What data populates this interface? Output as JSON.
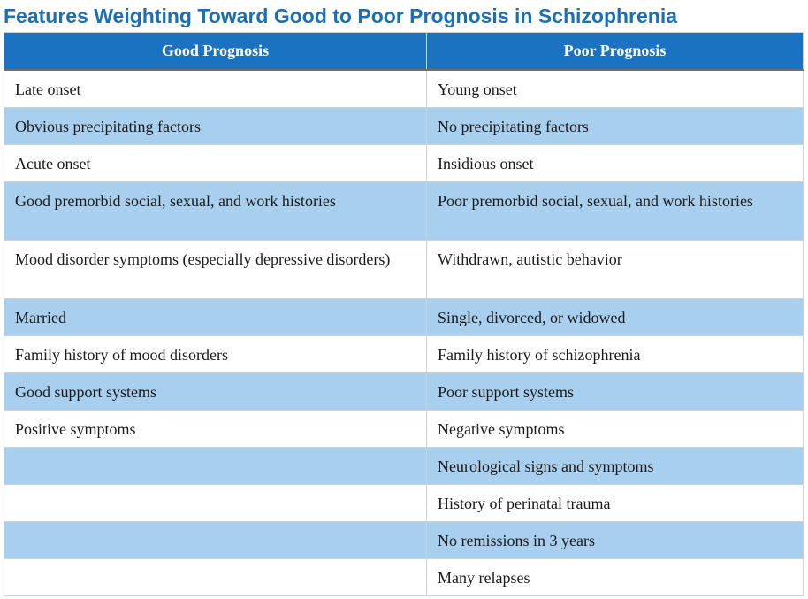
{
  "title": "Features Weighting Toward Good to Poor Prognosis in Schizophrenia",
  "table": {
    "headers": [
      "Good Prognosis",
      "Poor Prognosis"
    ],
    "rows": [
      {
        "good": "Late onset",
        "poor": "Young onset"
      },
      {
        "good": "Obvious precipitating factors",
        "poor": "No precipitating factors"
      },
      {
        "good": "Acute onset",
        "poor": "Insidious onset"
      },
      {
        "good": "Good premorbid social, sexual, and work histories",
        "poor": "Poor premorbid social, sexual, and work histories"
      },
      {
        "good": "Mood disorder symptoms (especially depressive disorders)",
        "poor": "Withdrawn, autistic behavior"
      },
      {
        "good": "Married",
        "poor": "Single, divorced, or widowed"
      },
      {
        "good": "Family history of mood disorders",
        "poor": "Family history of schizophrenia"
      },
      {
        "good": "Good support systems",
        "poor": "Poor support systems"
      },
      {
        "good": "Positive symptoms",
        "poor": "Negative symptoms"
      },
      {
        "good": "",
        "poor": "Neurological signs and symptoms"
      },
      {
        "good": "",
        "poor": "History of perinatal trauma"
      },
      {
        "good": "",
        "poor": "No remissions in 3 years"
      },
      {
        "good": "",
        "poor": "Many relapses"
      }
    ]
  }
}
